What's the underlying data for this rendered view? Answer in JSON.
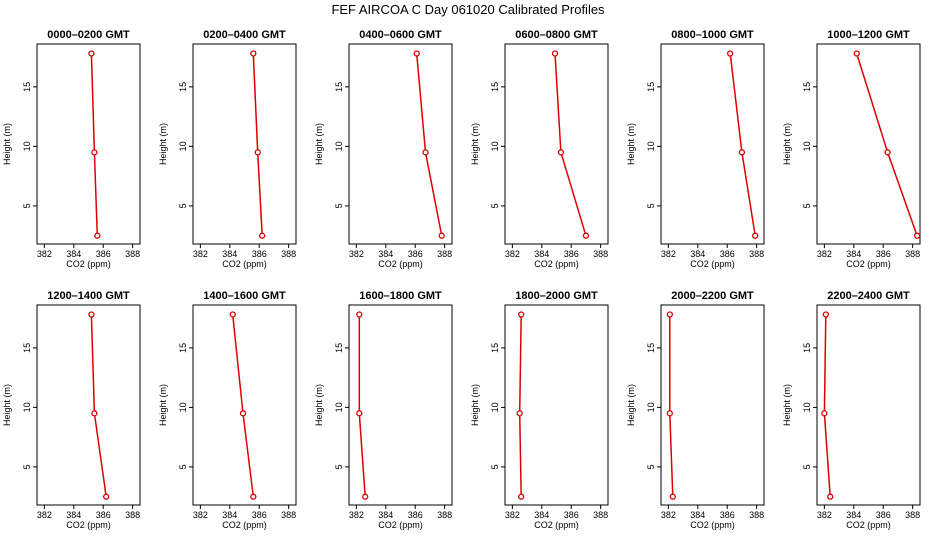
{
  "page": {
    "title": "FEF AIRCOA C  Day 061020  Calibrated Profiles"
  },
  "colors": {
    "profile": "#dd0000",
    "axis": "#000000"
  },
  "chart_data": [
    {
      "type": "line",
      "title": "0000–0200 GMT",
      "xlabel": "CO2 (ppm)",
      "ylabel": "Height (m)",
      "xlim": [
        381.5,
        388.5
      ],
      "ylim": [
        1.8,
        18.6
      ],
      "xticks": [
        "382",
        "384",
        "386",
        "388"
      ],
      "yticks": [
        "5",
        "10",
        "15"
      ],
      "x": [
        385.6,
        385.4,
        385.2
      ],
      "y": [
        2.5,
        9.5,
        17.8
      ]
    },
    {
      "type": "line",
      "title": "0200–0400 GMT",
      "xlabel": "CO2 (ppm)",
      "ylabel": "Height (m)",
      "xlim": [
        381.5,
        388.5
      ],
      "ylim": [
        1.8,
        18.6
      ],
      "xticks": [
        "382",
        "384",
        "386",
        "388"
      ],
      "yticks": [
        "5",
        "10",
        "15"
      ],
      "x": [
        386.2,
        385.9,
        385.6
      ],
      "y": [
        2.5,
        9.5,
        17.8
      ]
    },
    {
      "type": "line",
      "title": "0400–0600 GMT",
      "xlabel": "CO2 (ppm)",
      "ylabel": "Height (m)",
      "xlim": [
        381.5,
        388.5
      ],
      "ylim": [
        1.8,
        18.6
      ],
      "xticks": [
        "382",
        "384",
        "386",
        "388"
      ],
      "yticks": [
        "5",
        "10",
        "15"
      ],
      "x": [
        387.8,
        386.7,
        386.1
      ],
      "y": [
        2.5,
        9.5,
        17.8
      ]
    },
    {
      "type": "line",
      "title": "0600–0800 GMT",
      "xlabel": "CO2 (ppm)",
      "ylabel": "Height (m)",
      "xlim": [
        381.5,
        388.5
      ],
      "ylim": [
        1.8,
        18.6
      ],
      "xticks": [
        "382",
        "384",
        "386",
        "388"
      ],
      "yticks": [
        "5",
        "10",
        "15"
      ],
      "x": [
        387.0,
        385.3,
        384.9
      ],
      "y": [
        2.5,
        9.5,
        17.8
      ]
    },
    {
      "type": "line",
      "title": "0800–1000 GMT",
      "xlabel": "CO2 (ppm)",
      "ylabel": "Height (m)",
      "xlim": [
        381.5,
        388.5
      ],
      "ylim": [
        1.8,
        18.6
      ],
      "xticks": [
        "382",
        "384",
        "386",
        "388"
      ],
      "yticks": [
        "5",
        "10",
        "15"
      ],
      "x": [
        387.9,
        387.0,
        386.2
      ],
      "y": [
        2.5,
        9.5,
        17.8
      ]
    },
    {
      "type": "line",
      "title": "1000–1200 GMT",
      "xlabel": "CO2 (ppm)",
      "ylabel": "Height (m)",
      "xlim": [
        381.5,
        388.5
      ],
      "ylim": [
        1.8,
        18.6
      ],
      "xticks": [
        "382",
        "384",
        "386",
        "388"
      ],
      "yticks": [
        "5",
        "10",
        "15"
      ],
      "x": [
        388.3,
        386.3,
        384.2
      ],
      "y": [
        2.5,
        9.5,
        17.8
      ]
    },
    {
      "type": "line",
      "title": "1200–1400 GMT",
      "xlabel": "CO2 (ppm)",
      "ylabel": "Height (m)",
      "xlim": [
        381.5,
        388.5
      ],
      "ylim": [
        1.8,
        18.6
      ],
      "xticks": [
        "382",
        "384",
        "386",
        "388"
      ],
      "yticks": [
        "5",
        "10",
        "15"
      ],
      "x": [
        386.2,
        385.4,
        385.2
      ],
      "y": [
        2.5,
        9.5,
        17.8
      ]
    },
    {
      "type": "line",
      "title": "1400–1600 GMT",
      "xlabel": "CO2 (ppm)",
      "ylabel": "Height (m)",
      "xlim": [
        381.5,
        388.5
      ],
      "ylim": [
        1.8,
        18.6
      ],
      "xticks": [
        "382",
        "384",
        "386",
        "388"
      ],
      "yticks": [
        "5",
        "10",
        "15"
      ],
      "x": [
        385.6,
        384.9,
        384.2
      ],
      "y": [
        2.5,
        9.5,
        17.8
      ]
    },
    {
      "type": "line",
      "title": "1600–1800 GMT",
      "xlabel": "CO2 (ppm)",
      "ylabel": "Height (m)",
      "xlim": [
        381.5,
        388.5
      ],
      "ylim": [
        1.8,
        18.6
      ],
      "xticks": [
        "382",
        "384",
        "386",
        "388"
      ],
      "yticks": [
        "5",
        "10",
        "15"
      ],
      "x": [
        382.6,
        382.2,
        382.2
      ],
      "y": [
        2.5,
        9.5,
        17.8
      ]
    },
    {
      "type": "line",
      "title": "1800–2000 GMT",
      "xlabel": "CO2 (ppm)",
      "ylabel": "Height (m)",
      "xlim": [
        381.5,
        388.5
      ],
      "ylim": [
        1.8,
        18.6
      ],
      "xticks": [
        "382",
        "384",
        "386",
        "388"
      ],
      "yticks": [
        "5",
        "10",
        "15"
      ],
      "x": [
        382.6,
        382.5,
        382.6
      ],
      "y": [
        2.5,
        9.5,
        17.8
      ]
    },
    {
      "type": "line",
      "title": "2000–2200 GMT",
      "xlabel": "CO2 (ppm)",
      "ylabel": "Height (m)",
      "xlim": [
        381.5,
        388.5
      ],
      "ylim": [
        1.8,
        18.6
      ],
      "xticks": [
        "382",
        "384",
        "386",
        "388"
      ],
      "yticks": [
        "5",
        "10",
        "15"
      ],
      "x": [
        382.3,
        382.1,
        382.1
      ],
      "y": [
        2.5,
        9.5,
        17.8
      ]
    },
    {
      "type": "line",
      "title": "2200–2400 GMT",
      "xlabel": "CO2 (ppm)",
      "ylabel": "Height (m)",
      "xlim": [
        381.5,
        388.5
      ],
      "ylim": [
        1.8,
        18.6
      ],
      "xticks": [
        "382",
        "384",
        "386",
        "388"
      ],
      "yticks": [
        "5",
        "10",
        "15"
      ],
      "x": [
        382.4,
        382.0,
        382.1
      ],
      "y": [
        2.5,
        9.5,
        17.8
      ]
    }
  ]
}
